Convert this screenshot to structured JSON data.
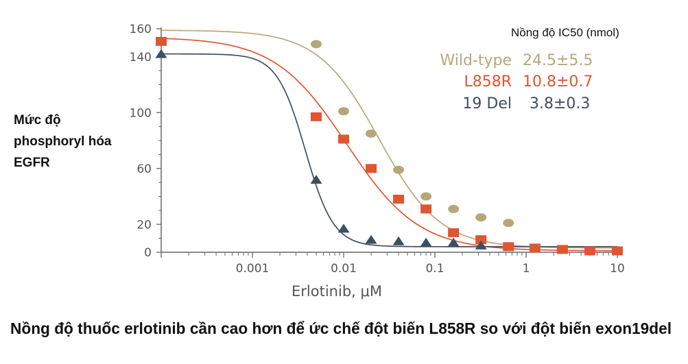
{
  "chart_data": {
    "type": "scatter",
    "title": "",
    "xlabel": "Erlotinib, μM",
    "ylabel_lines": [
      "Mức độ",
      "phosphoryl hóa",
      "EGFR"
    ],
    "xscale": "log",
    "xlim": [
      0.0001,
      10
    ],
    "ylim": [
      0,
      160
    ],
    "x_ticks": [
      0.001,
      0.01,
      0.1,
      1,
      10
    ],
    "x_tick_labels": [
      "0.001",
      "0.01",
      "0.1",
      "1",
      "10"
    ],
    "y_ticks": [
      0,
      20,
      60,
      100,
      140,
      160
    ],
    "y_tick_labels": [
      "0",
      "20",
      "60",
      "100",
      "140",
      "160"
    ],
    "grid": false,
    "legend": {
      "title": "Nồng độ IC50 (nmol)",
      "placement": "top-right",
      "entries": [
        {
          "label": "Wild-type",
          "value": "24.5±5.5"
        },
        {
          "label": "L858R",
          "value": "10.8±0.7"
        },
        {
          "label": "19 Del",
          "value": "3.8±0.3"
        }
      ]
    },
    "series": [
      {
        "name": "Wild-type",
        "marker": "circle",
        "color": "#b5a878",
        "x": [
          0.005,
          0.01,
          0.02,
          0.04,
          0.08,
          0.16,
          0.32,
          0.64
        ],
        "y": [
          149,
          101,
          85,
          59,
          40,
          31,
          25,
          21
        ],
        "fit": {
          "top": 159,
          "bottom": 3,
          "ic50": 0.0245,
          "hill": 1.3
        }
      },
      {
        "name": "L858R",
        "marker": "square",
        "color": "#e05532",
        "x": [
          0.0001,
          0.005,
          0.01,
          0.02,
          0.04,
          0.08,
          0.16,
          0.32,
          0.64,
          1.25,
          2.5,
          5,
          10
        ],
        "y": [
          151,
          97,
          81,
          60,
          38,
          31,
          14,
          9,
          4,
          3,
          2,
          1,
          1
        ],
        "fit": {
          "top": 154,
          "bottom": 1,
          "ic50": 0.0108,
          "hill": 1.1
        }
      },
      {
        "name": "19 Del",
        "marker": "triangle",
        "color": "#3d4f61",
        "x": [
          0.0001,
          0.005,
          0.01,
          0.02,
          0.04,
          0.08,
          0.16,
          0.32
        ],
        "y": [
          142,
          52,
          17,
          9,
          8,
          7,
          7,
          5
        ],
        "fit": {
          "top": 142,
          "bottom": 4,
          "ic50": 0.0038,
          "hill": 2.8
        }
      }
    ]
  },
  "caption": "Nồng độ thuốc erlotinib cần cao hơn để ức chế đột biến L858R so với đột biến exon19del"
}
